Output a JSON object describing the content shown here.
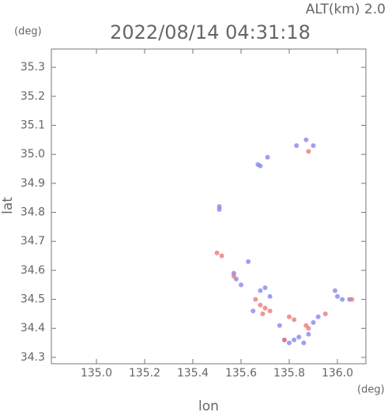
{
  "chart_data": {
    "type": "scatter",
    "title": "2022/08/14 04:31:18",
    "subtitle": "ALT(km) 2.0",
    "y_unit": "(deg)",
    "x_unit": "(deg)",
    "x_label": "lon",
    "y_label": "lat",
    "xlim": [
      134.813,
      136.118
    ],
    "ylim": [
      34.278,
      35.363
    ],
    "xticks": [
      {
        "value": 135.0,
        "label": "135.0"
      },
      135.2,
      135.4,
      135.6,
      135.8,
      {
        "value": 136.0,
        "label": "136.0"
      }
    ],
    "yticks": [
      34.3,
      34.4,
      34.5,
      34.6,
      34.7,
      34.8,
      34.9,
      {
        "value": 35.0,
        "label": "35.0"
      },
      35.1,
      35.2,
      35.3
    ],
    "grid": false,
    "series": [
      {
        "color": "#7f7fee",
        "x": [
          135.87,
          135.9,
          135.83,
          135.68,
          135.67,
          135.71,
          135.51,
          135.51,
          135.63,
          135.57,
          135.58,
          135.6,
          135.68,
          135.7,
          135.72,
          135.78,
          135.8,
          135.82,
          135.84,
          135.86,
          135.88,
          135.9,
          135.92,
          136.0,
          136.02,
          136.05,
          135.99,
          135.65,
          135.76
        ],
        "y": [
          35.05,
          35.03,
          35.03,
          34.96,
          34.965,
          34.99,
          34.82,
          34.81,
          34.63,
          34.59,
          34.57,
          34.55,
          34.53,
          34.54,
          34.51,
          34.36,
          34.35,
          34.36,
          34.37,
          34.35,
          34.38,
          34.42,
          34.44,
          34.51,
          34.5,
          34.5,
          34.53,
          34.46,
          34.41
        ]
      },
      {
        "color": "#ee7070",
        "x": [
          135.88,
          135.5,
          135.52,
          135.57,
          135.68,
          135.7,
          135.69,
          135.72,
          135.8,
          135.82,
          135.87,
          135.88,
          135.78,
          136.06,
          135.95,
          135.66
        ],
        "y": [
          35.01,
          34.66,
          34.65,
          34.58,
          34.48,
          34.47,
          34.45,
          34.46,
          34.44,
          34.43,
          34.41,
          34.4,
          34.36,
          34.5,
          34.45,
          34.5
        ]
      }
    ]
  }
}
